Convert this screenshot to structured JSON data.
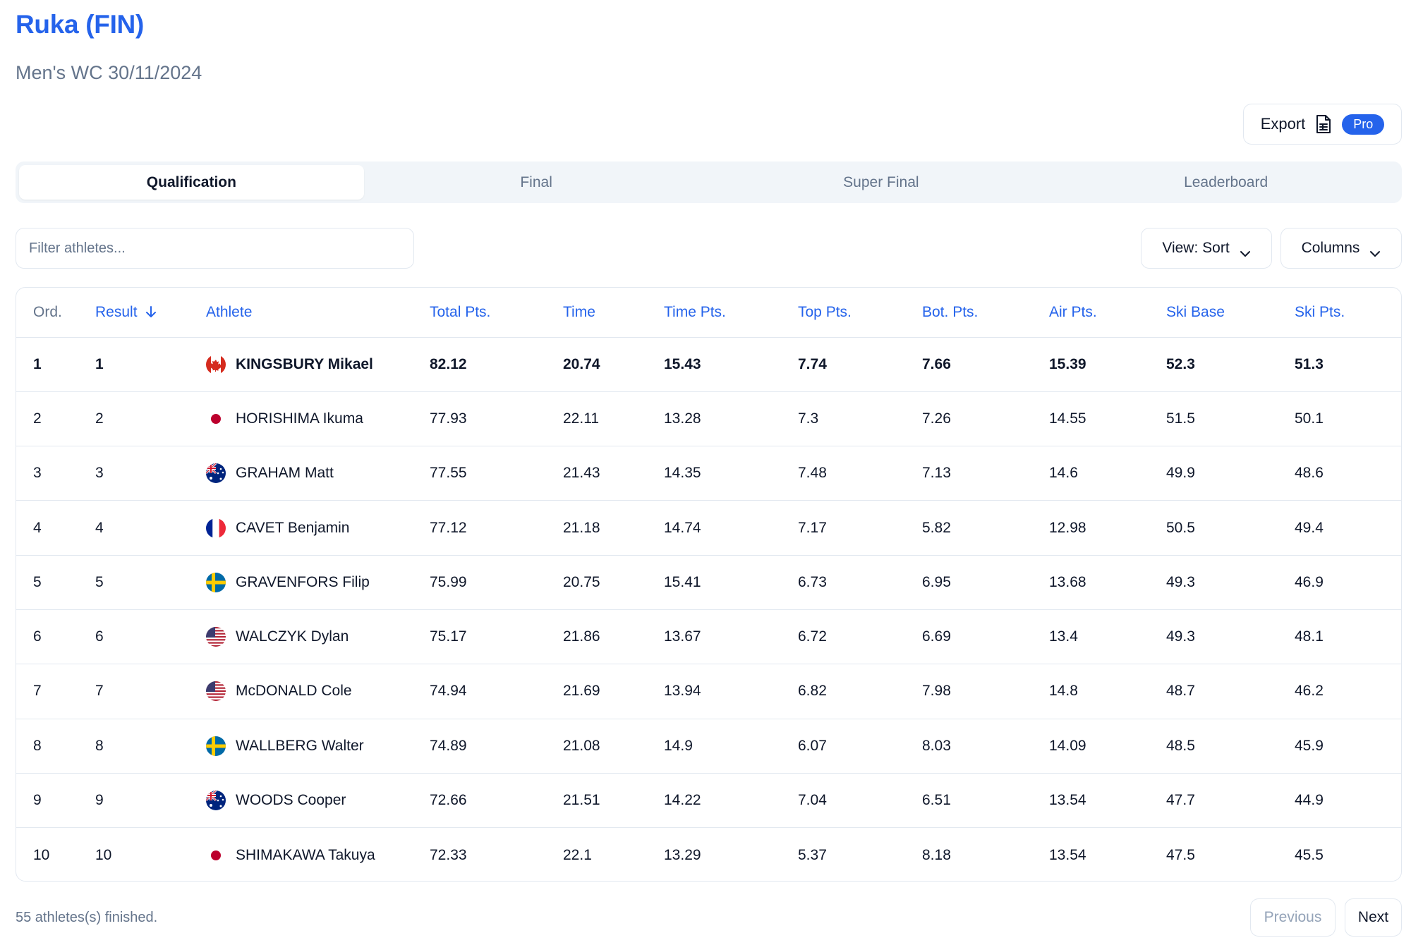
{
  "header": {
    "title": "Ruka (FIN)",
    "subtitle": "Men's WC 30/11/2024"
  },
  "export": {
    "label": "Export",
    "icon": "document-icon",
    "badge": "Pro"
  },
  "tabs": [
    {
      "label": "Qualification",
      "active": true
    },
    {
      "label": "Final",
      "active": false
    },
    {
      "label": "Super Final",
      "active": false
    },
    {
      "label": "Leaderboard",
      "active": false
    }
  ],
  "filter": {
    "placeholder": "Filter athletes...",
    "value": ""
  },
  "controls": {
    "view_label": "View: Sort",
    "columns_label": "Columns"
  },
  "table": {
    "columns": [
      "Ord.",
      "Result",
      "Athlete",
      "Total Pts.",
      "Time",
      "Time Pts.",
      "Top Pts.",
      "Bot. Pts.",
      "Air Pts.",
      "Ski Base",
      "Ski Pts."
    ],
    "sorted_by": "Result",
    "sort_direction": "descending-arrow",
    "rows": [
      {
        "ord": "1",
        "result": "1",
        "flag": "CAN",
        "athlete": "KINGSBURY Mikael",
        "total": "82.12",
        "time": "20.74",
        "time_pts": "15.43",
        "top_pts": "7.74",
        "bot_pts": "7.66",
        "air_pts": "15.39",
        "ski_base": "52.3",
        "ski_pts": "51.3",
        "highlight": true
      },
      {
        "ord": "2",
        "result": "2",
        "flag": "JPN",
        "athlete": "HORISHIMA Ikuma",
        "total": "77.93",
        "time": "22.11",
        "time_pts": "13.28",
        "top_pts": "7.3",
        "bot_pts": "7.26",
        "air_pts": "14.55",
        "ski_base": "51.5",
        "ski_pts": "50.1",
        "highlight": false
      },
      {
        "ord": "3",
        "result": "3",
        "flag": "AUS",
        "athlete": "GRAHAM Matt",
        "total": "77.55",
        "time": "21.43",
        "time_pts": "14.35",
        "top_pts": "7.48",
        "bot_pts": "7.13",
        "air_pts": "14.6",
        "ski_base": "49.9",
        "ski_pts": "48.6",
        "highlight": false
      },
      {
        "ord": "4",
        "result": "4",
        "flag": "FRA",
        "athlete": "CAVET Benjamin",
        "total": "77.12",
        "time": "21.18",
        "time_pts": "14.74",
        "top_pts": "7.17",
        "bot_pts": "5.82",
        "air_pts": "12.98",
        "ski_base": "50.5",
        "ski_pts": "49.4",
        "highlight": false
      },
      {
        "ord": "5",
        "result": "5",
        "flag": "SWE",
        "athlete": "GRAVENFORS Filip",
        "total": "75.99",
        "time": "20.75",
        "time_pts": "15.41",
        "top_pts": "6.73",
        "bot_pts": "6.95",
        "air_pts": "13.68",
        "ski_base": "49.3",
        "ski_pts": "46.9",
        "highlight": false
      },
      {
        "ord": "6",
        "result": "6",
        "flag": "USA",
        "athlete": "WALCZYK Dylan",
        "total": "75.17",
        "time": "21.86",
        "time_pts": "13.67",
        "top_pts": "6.72",
        "bot_pts": "6.69",
        "air_pts": "13.4",
        "ski_base": "49.3",
        "ski_pts": "48.1",
        "highlight": false
      },
      {
        "ord": "7",
        "result": "7",
        "flag": "USA",
        "athlete": "McDONALD Cole",
        "total": "74.94",
        "time": "21.69",
        "time_pts": "13.94",
        "top_pts": "6.82",
        "bot_pts": "7.98",
        "air_pts": "14.8",
        "ski_base": "48.7",
        "ski_pts": "46.2",
        "highlight": false
      },
      {
        "ord": "8",
        "result": "8",
        "flag": "SWE",
        "athlete": "WALLBERG Walter",
        "total": "74.89",
        "time": "21.08",
        "time_pts": "14.9",
        "top_pts": "6.07",
        "bot_pts": "8.03",
        "air_pts": "14.09",
        "ski_base": "48.5",
        "ski_pts": "45.9",
        "highlight": false
      },
      {
        "ord": "9",
        "result": "9",
        "flag": "AUS",
        "athlete": "WOODS Cooper",
        "total": "72.66",
        "time": "21.51",
        "time_pts": "14.22",
        "top_pts": "7.04",
        "bot_pts": "6.51",
        "air_pts": "13.54",
        "ski_base": "47.7",
        "ski_pts": "44.9",
        "highlight": false
      },
      {
        "ord": "10",
        "result": "10",
        "flag": "JPN",
        "athlete": "SHIMAKAWA Takuya",
        "total": "72.33",
        "time": "22.1",
        "time_pts": "13.29",
        "top_pts": "5.37",
        "bot_pts": "8.18",
        "air_pts": "13.54",
        "ski_base": "47.5",
        "ski_pts": "45.5",
        "highlight": false
      }
    ]
  },
  "footer": {
    "summary": "55 athletes(s) finished.",
    "previous_label": "Previous",
    "next_label": "Next"
  },
  "colors": {
    "accent": "#2563eb",
    "muted_text": "#64748b",
    "border": "#e2e8f0",
    "tab_track": "#f1f5f9"
  }
}
